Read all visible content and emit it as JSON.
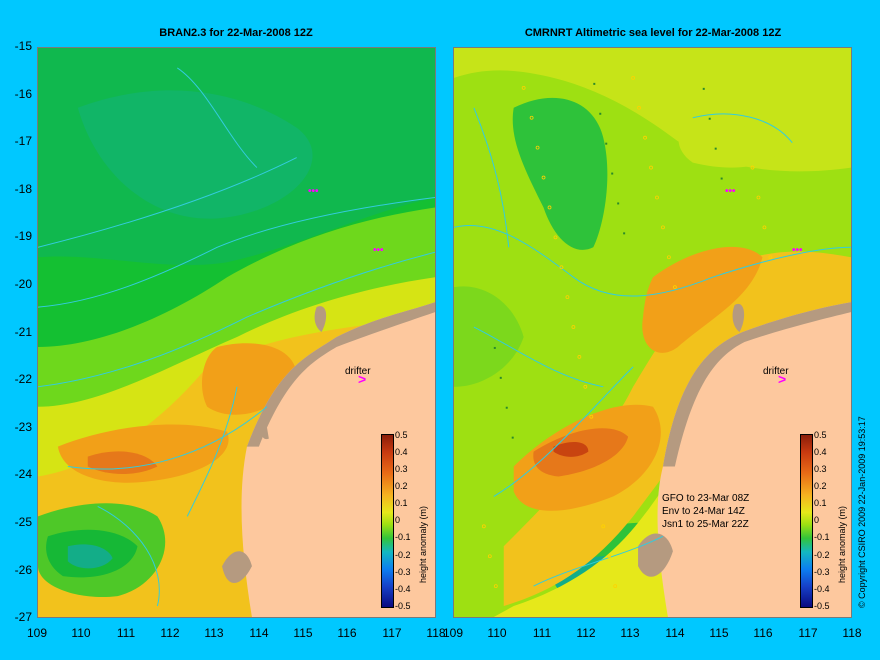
{
  "left_panel": {
    "title": "BRAN2.3 for 22-Mar-2008 12Z",
    "drifter_label": "drifter",
    "colorbar_label": "height anomaly (m)"
  },
  "right_panel": {
    "title": "CMRNRT Altimetric sea level  for 22-Mar-2008 12Z",
    "drifter_label": "drifter",
    "colorbar_label": "height anomaly (m)",
    "satellite_passes": [
      "GFO to 23-Mar 08Z",
      "Env to 24-Mar 14Z",
      "Jsn1 to 25-Mar 22Z"
    ]
  },
  "axes": {
    "latitude_ticks": [
      "-15",
      "-16",
      "-17",
      "-18",
      "-19",
      "-20",
      "-21",
      "-22",
      "-23",
      "-24",
      "-25",
      "-26",
      "-27"
    ],
    "longitude_ticks": [
      "109",
      "110",
      "111",
      "112",
      "113",
      "114",
      "115",
      "116",
      "117",
      "118"
    ],
    "lon_range": [
      109,
      118
    ],
    "lat_range": [
      -27,
      -15
    ]
  },
  "colorbar": {
    "ticks": [
      "0.5",
      "0.4",
      "0.3",
      "0.2",
      "0.1",
      "0",
      "-0.1",
      "-0.2",
      "-0.3",
      "-0.4",
      "-0.5"
    ],
    "range": [
      -0.5,
      0.5
    ],
    "colors": [
      "#8a1e0a",
      "#c83a10",
      "#e86a16",
      "#f5b220",
      "#e6e81a",
      "#9ee012",
      "#33c43a",
      "#13b8c0",
      "#0c7ef0",
      "#1640c8",
      "#0a0a80"
    ]
  },
  "land_color": "#fdc89e",
  "coast_color": "#b59a80",
  "contour_color": "#33ccdd",
  "drifter_color": "#ff00ff",
  "copyright": "© Copyright CSIRO 2009   22-Jan-2009 19:53:17"
}
